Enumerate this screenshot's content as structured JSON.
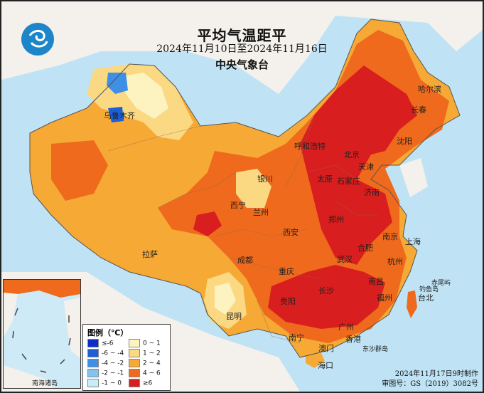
{
  "header": {
    "title": "平均气温距平",
    "period": "2024年11月10日至2024年11月16日",
    "agency": "中央气象台"
  },
  "cities": [
    {
      "name": "乌鲁木齐"
    },
    {
      "name": "哈尔滨"
    },
    {
      "name": "长春"
    },
    {
      "name": "沈阳"
    },
    {
      "name": "呼和浩特"
    },
    {
      "name": "北京"
    },
    {
      "name": "天津"
    },
    {
      "name": "太原"
    },
    {
      "name": "石家庄"
    },
    {
      "name": "济南"
    },
    {
      "name": "银川"
    },
    {
      "name": "西宁"
    },
    {
      "name": "兰州"
    },
    {
      "name": "西安"
    },
    {
      "name": "郑州"
    },
    {
      "name": "南京"
    },
    {
      "name": "合肥"
    },
    {
      "name": "上海"
    },
    {
      "name": "杭州"
    },
    {
      "name": "武汉"
    },
    {
      "name": "拉萨"
    },
    {
      "name": "成都"
    },
    {
      "name": "重庆"
    },
    {
      "name": "长沙"
    },
    {
      "name": "南昌"
    },
    {
      "name": "福州"
    },
    {
      "name": "台北"
    },
    {
      "name": "贵阳"
    },
    {
      "name": "昆明"
    },
    {
      "name": "南宁"
    },
    {
      "name": "广州"
    },
    {
      "name": "香港"
    },
    {
      "name": "澳门"
    },
    {
      "name": "海口"
    },
    {
      "name": "赤尾屿"
    },
    {
      "name": "钓鱼岛"
    },
    {
      "name": "东沙群岛"
    }
  ],
  "legend": {
    "title": "图例（℃）",
    "items": [
      {
        "label": "≤-6",
        "color": "#0b2dc8"
      },
      {
        "label": "-6 ~ -4",
        "color": "#1e5fd6"
      },
      {
        "label": "-4 ~ -2",
        "color": "#3e8fe6"
      },
      {
        "label": "-2 ~ -1",
        "color": "#82c3f2"
      },
      {
        "label": "-1 ~ 0",
        "color": "#c9ecfb"
      },
      {
        "label": "0 ~ 1",
        "color": "#fdf3c0"
      },
      {
        "label": "1 ~ 2",
        "color": "#fbd882"
      },
      {
        "label": "2 ~ 4",
        "color": "#f6a934"
      },
      {
        "label": "4 ~ 6",
        "color": "#ef6a1c"
      },
      {
        "label": "≥6",
        "color": "#d81e1e"
      }
    ]
  },
  "inset": {
    "label": "南海诸岛"
  },
  "footer": {
    "made": "2024年11月17日9时制作",
    "approval": "审图号：GS（2019）3082号"
  },
  "colors": {
    "sea": "#bfe3f5",
    "land_outside": "#f4f1ec"
  }
}
